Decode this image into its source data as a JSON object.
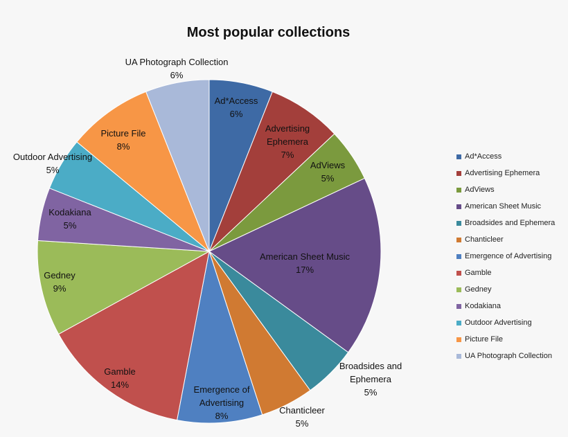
{
  "chart_data": {
    "type": "pie",
    "title": "Most popular collections",
    "legend_position": "right",
    "slices": [
      {
        "name": "Ad*Access",
        "value": 6,
        "pct_label": "6%",
        "color": "#3e6aa5"
      },
      {
        "name": "Advertising Ephemera",
        "value": 7,
        "pct_label": "7%",
        "color": "#a33f3b"
      },
      {
        "name": "AdViews",
        "value": 5,
        "pct_label": "5%",
        "color": "#7b9a3e"
      },
      {
        "name": "American Sheet Music",
        "value": 17,
        "pct_label": "17%",
        "color": "#664c88"
      },
      {
        "name": "Broadsides and Ephemera",
        "value": 5,
        "pct_label": "5%",
        "color": "#3a8a9c"
      },
      {
        "name": "Chanticleer",
        "value": 5,
        "pct_label": "5%",
        "color": "#d07a32"
      },
      {
        "name": "Emergence of Advertising",
        "value": 8,
        "pct_label": "8%",
        "color": "#4f80c1"
      },
      {
        "name": "Gamble",
        "value": 14,
        "pct_label": "14%",
        "color": "#c0504d"
      },
      {
        "name": "Gedney",
        "value": 9,
        "pct_label": "9%",
        "color": "#9bbb59"
      },
      {
        "name": "Kodakiana",
        "value": 5,
        "pct_label": "5%",
        "color": "#8064a2"
      },
      {
        "name": "Outdoor Advertising",
        "value": 5,
        "pct_label": "5%",
        "color": "#4bacc6"
      },
      {
        "name": "Picture File",
        "value": 8,
        "pct_label": "8%",
        "color": "#f79646"
      },
      {
        "name": "UA Photograph Collection",
        "value": 6,
        "pct_label": "6%",
        "color": "#a9b9d9"
      }
    ]
  }
}
